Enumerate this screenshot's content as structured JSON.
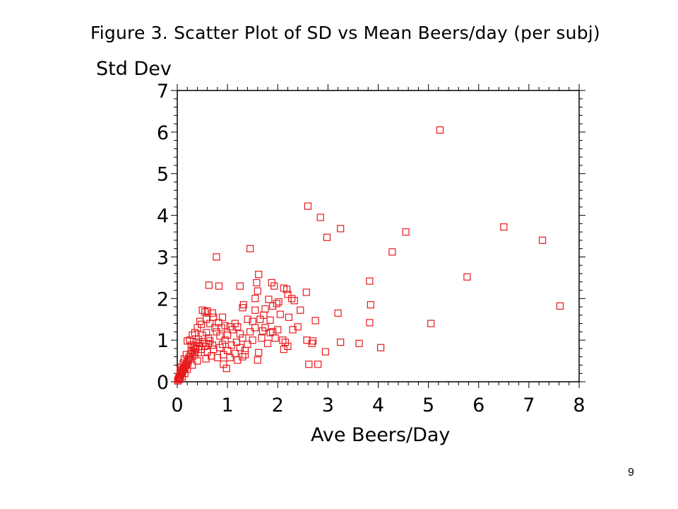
{
  "page": {
    "number": "9"
  },
  "chart_data": {
    "type": "scatter",
    "title": "Figure 3.   Scatter Plot of SD vs Mean Beers/day (per subj)",
    "xlabel": "Ave Beers/Day",
    "ylabel": "Std Dev",
    "xlim": [
      0,
      8
    ],
    "ylim": [
      0,
      7
    ],
    "x_ticks": [
      0,
      1,
      2,
      3,
      4,
      5,
      6,
      7,
      8
    ],
    "y_ticks": [
      0,
      1,
      2,
      3,
      4,
      5,
      6,
      7
    ],
    "grid": false,
    "marker": "open-square",
    "color": "#e8191c",
    "points": [
      [
        5.23,
        6.05
      ],
      [
        2.6,
        4.22
      ],
      [
        2.85,
        3.95
      ],
      [
        3.25,
        3.68
      ],
      [
        2.98,
        3.47
      ],
      [
        4.55,
        3.6
      ],
      [
        6.5,
        3.72
      ],
      [
        7.27,
        3.4
      ],
      [
        4.28,
        3.12
      ],
      [
        1.45,
        3.2
      ],
      [
        0.78,
        3.0
      ],
      [
        5.77,
        2.52
      ],
      [
        7.62,
        1.82
      ],
      [
        5.05,
        1.4
      ],
      [
        3.83,
        2.42
      ],
      [
        3.85,
        1.85
      ],
      [
        3.83,
        1.42
      ],
      [
        3.2,
        1.65
      ],
      [
        3.25,
        0.95
      ],
      [
        3.62,
        0.92
      ],
      [
        4.05,
        0.82
      ],
      [
        2.95,
        0.72
      ],
      [
        2.68,
        0.92
      ],
      [
        2.7,
        0.98
      ],
      [
        2.58,
        1.0
      ],
      [
        2.75,
        1.47
      ],
      [
        2.57,
        2.15
      ],
      [
        2.4,
        1.32
      ],
      [
        2.45,
        1.72
      ],
      [
        2.62,
        0.42
      ],
      [
        2.8,
        0.42
      ],
      [
        0.63,
        2.32
      ],
      [
        0.83,
        2.3
      ],
      [
        1.25,
        2.3
      ],
      [
        1.58,
        2.38
      ],
      [
        1.62,
        2.58
      ],
      [
        1.88,
        2.38
      ],
      [
        1.93,
        2.3
      ],
      [
        2.12,
        2.25
      ],
      [
        2.18,
        2.22
      ],
      [
        2.2,
        2.1
      ],
      [
        2.28,
        2.0
      ],
      [
        2.33,
        1.95
      ],
      [
        1.6,
        2.18
      ],
      [
        1.82,
        1.98
      ],
      [
        1.98,
        1.88
      ],
      [
        2.02,
        1.92
      ],
      [
        1.9,
        1.82
      ],
      [
        1.75,
        1.75
      ],
      [
        1.55,
        1.72
      ],
      [
        1.3,
        1.78
      ],
      [
        1.32,
        1.85
      ],
      [
        1.65,
        1.5
      ],
      [
        1.5,
        1.45
      ],
      [
        1.75,
        1.3
      ],
      [
        1.9,
        1.2
      ],
      [
        2.0,
        1.25
      ],
      [
        2.1,
        1.0
      ],
      [
        2.15,
        0.95
      ],
      [
        2.2,
        0.85
      ],
      [
        2.12,
        0.78
      ],
      [
        1.8,
        0.92
      ],
      [
        1.62,
        0.7
      ],
      [
        1.6,
        0.52
      ],
      [
        1.35,
        0.75
      ],
      [
        1.3,
        0.6
      ],
      [
        1.2,
        0.52
      ],
      [
        1.15,
        0.68
      ],
      [
        0.98,
        0.32
      ],
      [
        1.05,
        0.58
      ],
      [
        0.92,
        0.42
      ],
      [
        0.85,
        0.82
      ],
      [
        0.95,
        1.0
      ],
      [
        1.0,
        1.12
      ],
      [
        1.1,
        1.25
      ],
      [
        1.2,
        1.32
      ],
      [
        1.25,
        1.15
      ],
      [
        0.9,
        1.55
      ],
      [
        0.82,
        1.42
      ],
      [
        0.75,
        1.3
      ],
      [
        0.7,
        1.65
      ],
      [
        0.6,
        1.7
      ],
      [
        0.55,
        1.68
      ],
      [
        0.5,
        1.72
      ],
      [
        0.45,
        1.45
      ],
      [
        0.48,
        1.38
      ],
      [
        0.4,
        1.3
      ],
      [
        0.35,
        1.18
      ],
      [
        0.3,
        1.12
      ],
      [
        0.25,
        1.0
      ],
      [
        0.2,
        0.98
      ],
      [
        0.28,
        0.88
      ],
      [
        0.32,
        0.82
      ],
      [
        0.38,
        0.95
      ],
      [
        0.42,
        1.02
      ],
      [
        0.5,
        1.12
      ],
      [
        0.58,
        1.18
      ],
      [
        0.62,
        1.05
      ],
      [
        0.65,
        0.98
      ],
      [
        0.7,
        0.88
      ],
      [
        0.72,
        0.78
      ],
      [
        0.6,
        0.72
      ],
      [
        0.55,
        0.85
      ],
      [
        0.48,
        0.78
      ],
      [
        0.42,
        0.7
      ],
      [
        0.35,
        0.65
      ],
      [
        0.3,
        0.6
      ],
      [
        0.25,
        0.55
      ],
      [
        0.22,
        0.48
      ],
      [
        0.18,
        0.42
      ],
      [
        0.15,
        0.35
      ],
      [
        0.12,
        0.3
      ],
      [
        0.1,
        0.25
      ],
      [
        0.08,
        0.2
      ],
      [
        0.06,
        0.15
      ],
      [
        0.04,
        0.1
      ],
      [
        0.02,
        0.05
      ],
      [
        0.01,
        0.02
      ],
      [
        0.03,
        0.08
      ],
      [
        0.05,
        0.12
      ],
      [
        0.07,
        0.18
      ],
      [
        0.09,
        0.22
      ],
      [
        0.11,
        0.28
      ],
      [
        0.13,
        0.32
      ],
      [
        0.16,
        0.38
      ],
      [
        0.19,
        0.45
      ],
      [
        0.21,
        0.52
      ],
      [
        0.24,
        0.6
      ],
      [
        0.27,
        0.68
      ],
      [
        0.33,
        0.72
      ],
      [
        0.37,
        0.78
      ],
      [
        0.44,
        0.85
      ],
      [
        0.52,
        0.92
      ],
      [
        0.57,
        0.55
      ],
      [
        0.4,
        0.5
      ],
      [
        0.3,
        0.4
      ],
      [
        0.2,
        0.3
      ],
      [
        0.15,
        0.2
      ],
      [
        0.1,
        0.12
      ],
      [
        0.05,
        0.06
      ],
      [
        0.85,
        1.1
      ],
      [
        0.78,
        1.2
      ],
      [
        0.88,
        1.3
      ],
      [
        0.95,
        1.35
      ],
      [
        1.05,
        1.32
      ],
      [
        1.15,
        1.4
      ],
      [
        1.4,
        1.5
      ],
      [
        1.45,
        1.2
      ],
      [
        1.55,
        1.3
      ],
      [
        1.7,
        1.22
      ],
      [
        1.85,
        1.18
      ],
      [
        1.95,
        1.05
      ],
      [
        1.5,
        1.0
      ],
      [
        1.4,
        0.9
      ],
      [
        1.3,
        1.05
      ],
      [
        1.18,
        0.95
      ],
      [
        1.08,
        0.88
      ],
      [
        1.0,
        0.75
      ],
      [
        0.92,
        0.65
      ],
      [
        0.8,
        0.58
      ],
      [
        0.68,
        0.62
      ],
      [
        1.55,
        2.0
      ],
      [
        1.72,
        1.6
      ],
      [
        1.85,
        1.48
      ],
      [
        2.05,
        1.62
      ],
      [
        2.22,
        1.55
      ],
      [
        2.3,
        1.25
      ],
      [
        1.68,
        1.05
      ],
      [
        0.65,
        1.4
      ],
      [
        0.58,
        1.5
      ],
      [
        0.72,
        1.55
      ],
      [
        0.62,
        0.92
      ],
      [
        0.45,
        0.92
      ],
      [
        0.35,
        0.85
      ],
      [
        0.28,
        0.75
      ],
      [
        0.18,
        0.65
      ],
      [
        0.14,
        0.55
      ],
      [
        0.12,
        0.45
      ],
      [
        0.08,
        0.35
      ],
      [
        0.06,
        0.28
      ],
      [
        0.9,
        0.9
      ],
      [
        1.25,
        0.82
      ],
      [
        1.35,
        0.65
      ]
    ]
  }
}
